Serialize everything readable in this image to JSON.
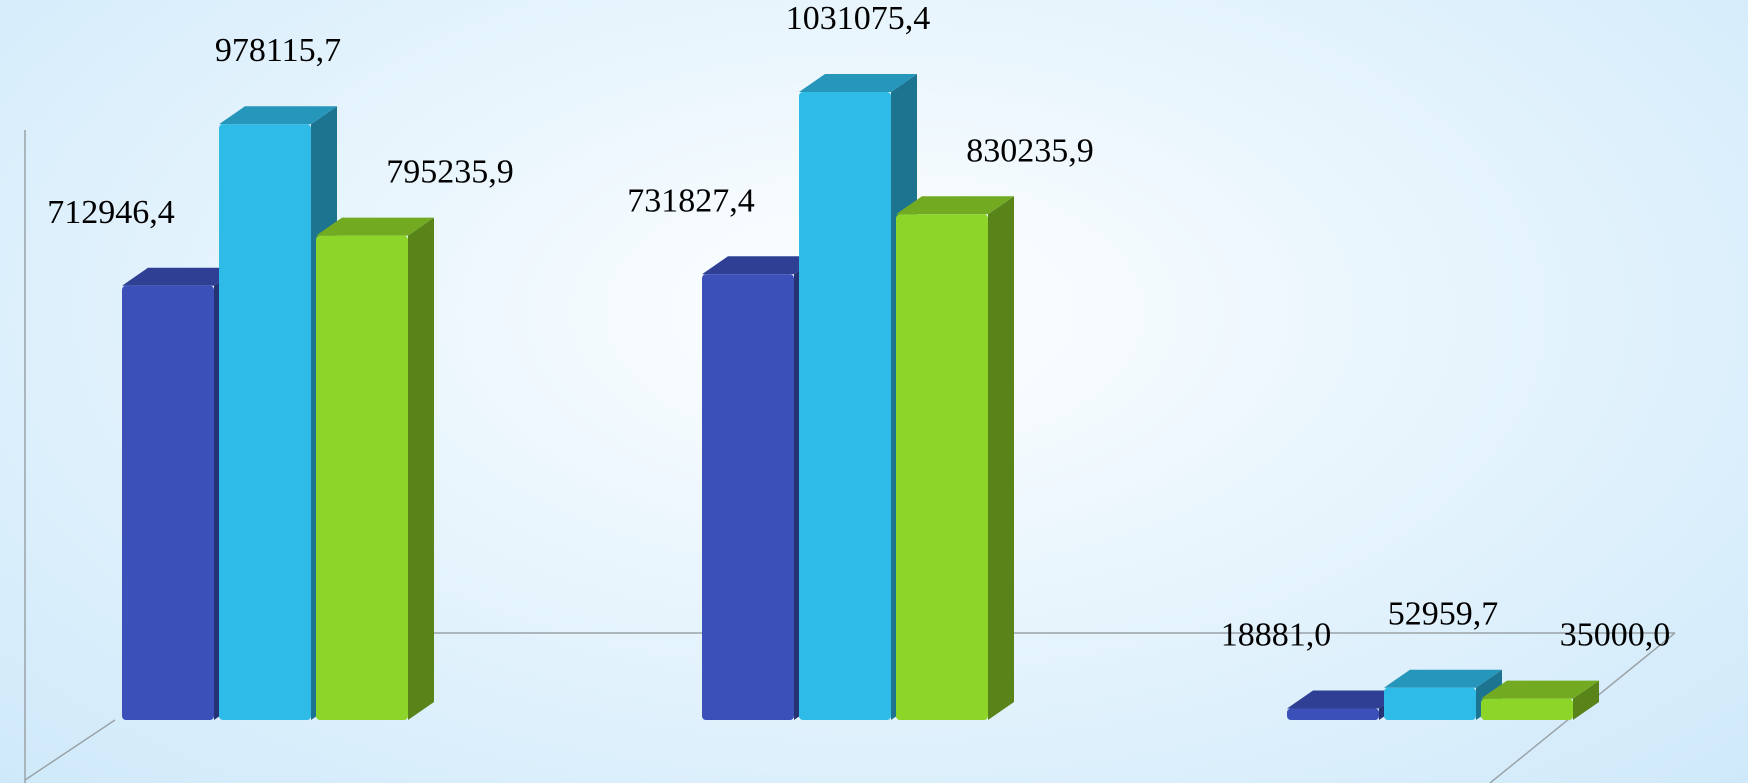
{
  "chart_data": {
    "type": "bar3d",
    "categories": [
      null,
      null,
      null
    ],
    "series": [
      {
        "color": "#3b50b9",
        "values": [
          712946.4,
          731827.4,
          18881.0
        ],
        "value_labels": [
          "712946,4",
          "731827,4",
          "18881,0"
        ]
      },
      {
        "color": "#2fbbe8",
        "values": [
          978115.7,
          1031075.4,
          52959.7
        ],
        "value_labels": [
          "978115,7",
          "1031075,4",
          "52959,7"
        ]
      },
      {
        "color": "#8ed52a",
        "values": [
          795235.9,
          830235.9,
          35000.0
        ],
        "value_labels": [
          "795235,9",
          "830235,9",
          "35000,0"
        ]
      }
    ],
    "ylim": [
      0,
      1100000
    ]
  }
}
